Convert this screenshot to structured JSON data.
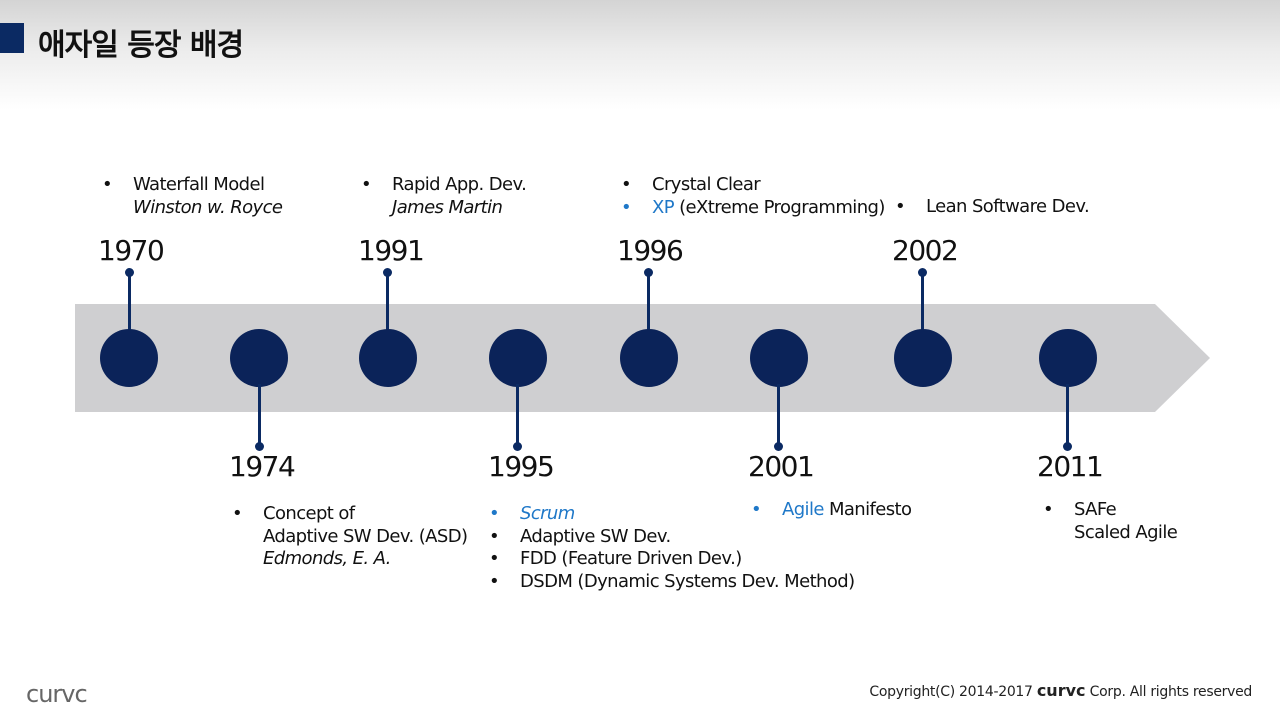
{
  "header": {
    "title": "애자일 등장 배경"
  },
  "timeline": {
    "events": [
      {
        "year": "1970",
        "items": [
          {
            "bullet": "•",
            "parts": [
              {
                "text": "Waterfall Model"
              }
            ]
          },
          {
            "bullet": "",
            "parts": [
              {
                "text": "Winston w. Royce",
                "style": "italic"
              }
            ]
          }
        ]
      },
      {
        "year": "1974",
        "items": [
          {
            "bullet": "•",
            "parts": [
              {
                "text": "Concept of"
              }
            ]
          },
          {
            "bullet": "",
            "parts": [
              {
                "text": "Adaptive SW Dev. (ASD)"
              }
            ]
          },
          {
            "bullet": "",
            "parts": [
              {
                "text": "Edmonds, E. A.",
                "style": "italic"
              }
            ]
          }
        ]
      },
      {
        "year": "1991",
        "items": [
          {
            "bullet": "•",
            "parts": [
              {
                "text": "Rapid App. Dev."
              }
            ]
          },
          {
            "bullet": "",
            "parts": [
              {
                "text": "James Martin",
                "style": "italic"
              }
            ]
          }
        ]
      },
      {
        "year": "1995",
        "items": [
          {
            "bullet": "•",
            "bullet_color": "blue",
            "parts": [
              {
                "text": "Scrum",
                "style": "italic-blue"
              }
            ]
          },
          {
            "bullet": "•",
            "parts": [
              {
                "text": "Adaptive SW Dev."
              }
            ]
          },
          {
            "bullet": "•",
            "parts": [
              {
                "text": "FDD (Feature Driven Dev.)"
              }
            ]
          },
          {
            "bullet": "•",
            "parts": [
              {
                "text": "DSDM (Dynamic Systems Dev. Method)"
              }
            ]
          }
        ]
      },
      {
        "year": "1996",
        "items": [
          {
            "bullet": "•",
            "parts": [
              {
                "text": "Crystal Clear"
              }
            ]
          },
          {
            "bullet": "•",
            "bullet_color": "blue",
            "parts": [
              {
                "text": "XP",
                "style": "blue"
              },
              {
                "text": " (eXtreme Programming)"
              }
            ]
          }
        ]
      },
      {
        "year": "2001",
        "items": [
          {
            "bullet": "•",
            "bullet_color": "blue",
            "parts": [
              {
                "text": "Agile",
                "style": "blue"
              },
              {
                "text": " Manifesto"
              }
            ]
          }
        ]
      },
      {
        "year": "2002",
        "items": [
          {
            "bullet": "•",
            "parts": [
              {
                "text": "Lean Software Dev."
              }
            ]
          }
        ]
      },
      {
        "year": "2011",
        "items": [
          {
            "bullet": "•",
            "parts": [
              {
                "text": "SAFe"
              }
            ]
          },
          {
            "bullet": "",
            "parts": [
              {
                "text": "Scaled Agile"
              }
            ]
          }
        ]
      }
    ]
  },
  "colors": {
    "navy": "#0b2359",
    "band": "#cfcfd1",
    "accent_blue": "#1f78c8"
  },
  "footer": {
    "logo_text": "curvc",
    "copyright_prefix": "Copyright(C) 2014-2017",
    "copyright_brand": "curvc",
    "copyright_suffix": "Corp. All rights reserved"
  }
}
